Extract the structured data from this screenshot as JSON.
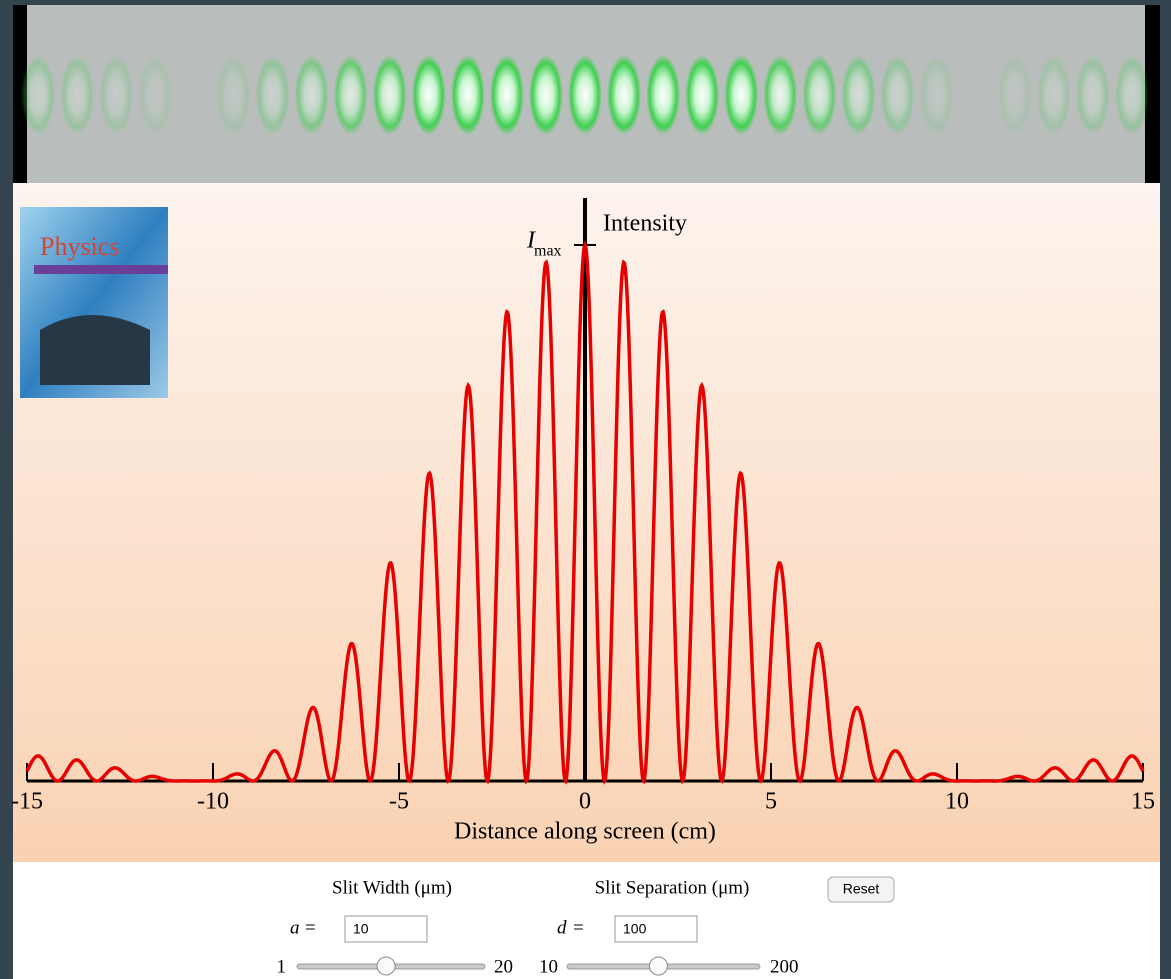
{
  "chart_data": {
    "type": "line",
    "imax_symbol": "I",
    "imax_subscript": "max",
    "y_axis_label": "Intensity",
    "x_axis_label": "Distance along screen (cm)",
    "xlim": [
      -15,
      15
    ],
    "xticks": [
      -15,
      -10,
      -5,
      0,
      5,
      10,
      15
    ],
    "color": "#e60000"
  },
  "book": {
    "title": "Physics"
  },
  "controls": {
    "slit_width": {
      "label": "Slit Width (μm)",
      "symbol": "a",
      "equals": "=",
      "value": 10,
      "min": 1,
      "max": 20
    },
    "slit_separation": {
      "label": "Slit Separation (μm)",
      "symbol": "d",
      "equals": "=",
      "value": 100,
      "min": 10,
      "max": 200
    },
    "reset": "Reset"
  }
}
